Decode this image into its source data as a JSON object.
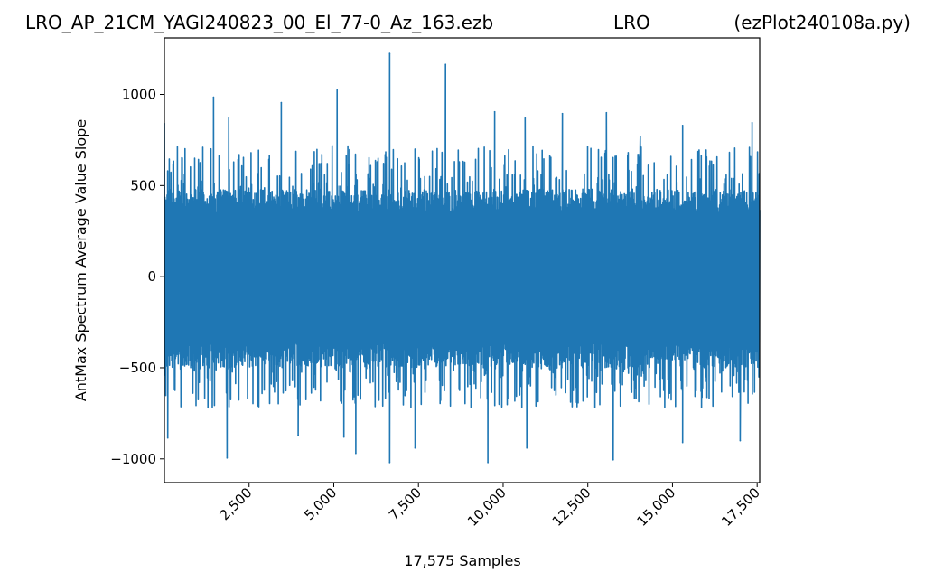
{
  "title": {
    "file": "LRO_AP_21CM_YAGI240823_00_El_77-0_Az_163.ezb",
    "site": "LRO",
    "program": "(ezPlot240108a.py)"
  },
  "chart_data": {
    "type": "line",
    "xlabel": "17,575 Samples",
    "ylabel": "AntMax Spectrum Average Value Slope",
    "xlim": [
      0,
      17575
    ],
    "ylim": [
      -1130,
      1310
    ],
    "x_ticks": [
      2500,
      5000,
      7500,
      10000,
      12500,
      15000,
      17500
    ],
    "x_tick_labels": [
      "2,500",
      "5,000",
      "7,500",
      "10,000",
      "12,500",
      "15,000",
      "17,500"
    ],
    "y_ticks": [
      -1000,
      -500,
      0,
      500,
      1000
    ],
    "y_tick_labels": [
      "−1000",
      "−500",
      "0",
      "500",
      "1000"
    ],
    "grid": false,
    "legend": "none",
    "series": [
      {
        "color": "#1f77b4",
        "typical_min": -500,
        "typical_max": 480,
        "peaks": [
          {
            "x": 0,
            "y": 840
          },
          {
            "x": 1450,
            "y": 985
          },
          {
            "x": 1900,
            "y": 870
          },
          {
            "x": 3450,
            "y": 955
          },
          {
            "x": 5100,
            "y": 1025
          },
          {
            "x": 6650,
            "y": 1225
          },
          {
            "x": 8300,
            "y": 1165
          },
          {
            "x": 9750,
            "y": 905
          },
          {
            "x": 10650,
            "y": 870
          },
          {
            "x": 11750,
            "y": 895
          },
          {
            "x": 13050,
            "y": 900
          },
          {
            "x": 14050,
            "y": 770
          },
          {
            "x": 15300,
            "y": 830
          },
          {
            "x": 17350,
            "y": 845
          }
        ],
        "troughs": [
          {
            "x": 100,
            "y": -885
          },
          {
            "x": 1850,
            "y": -995
          },
          {
            "x": 3950,
            "y": -870
          },
          {
            "x": 5300,
            "y": -880
          },
          {
            "x": 5650,
            "y": -970
          },
          {
            "x": 6650,
            "y": -1020
          },
          {
            "x": 7400,
            "y": -940
          },
          {
            "x": 9550,
            "y": -1020
          },
          {
            "x": 10700,
            "y": -940
          },
          {
            "x": 13250,
            "y": -1005
          },
          {
            "x": 15300,
            "y": -910
          },
          {
            "x": 17000,
            "y": -900
          }
        ]
      }
    ]
  }
}
